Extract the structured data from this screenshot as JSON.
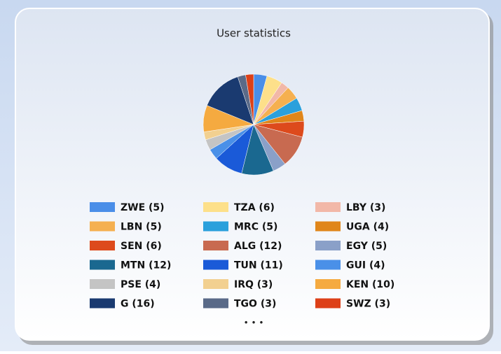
{
  "chart_data": {
    "type": "pie",
    "title": "User statistics",
    "categories": [
      "ZWE (5)",
      "TZA (6)",
      "LBY (3)",
      "LBN (5)",
      "MRC (5)",
      "UGA (4)",
      "SEN (6)",
      "ALG (12)",
      "EGY (5)",
      "MTN (12)",
      "TUN (11)",
      "GUI (4)",
      "PSE (4)",
      "IRQ (3)",
      "KEN (10)",
      "G (16)",
      "TGO (3)",
      "SWZ (3)"
    ],
    "values": [
      5,
      6,
      3,
      5,
      5,
      4,
      6,
      12,
      5,
      12,
      11,
      4,
      4,
      3,
      10,
      16,
      3,
      3
    ],
    "colors": [
      "#4a8ee8",
      "#fde08a",
      "#f2b8a8",
      "#f5b050",
      "#2aa0dc",
      "#e0861a",
      "#dd4a1c",
      "#c86a50",
      "#8aa0c8",
      "#1a6890",
      "#1a5ad8",
      "#4a90e8",
      "#c4c4c4",
      "#f2d090",
      "#f5aa40",
      "#1a3a70",
      "#5a6a88",
      "#dd4018"
    ],
    "more": "• • •"
  }
}
